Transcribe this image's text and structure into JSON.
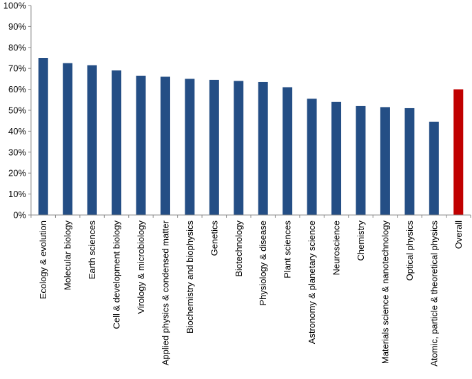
{
  "chart_data": {
    "type": "bar",
    "title": "",
    "xlabel": "",
    "ylabel": "",
    "ylim": [
      0,
      100
    ],
    "yticks": [
      "0%",
      "10%",
      "20%",
      "30%",
      "40%",
      "50%",
      "60%",
      "70%",
      "80%",
      "90%",
      "100%"
    ],
    "grid": "none",
    "legend": "none",
    "categories": [
      "Ecology & evolution",
      "Molecular biology",
      "Earth sciences",
      "Cell & development biology",
      "Virology & microbiology",
      "Applied physics & condensed matter",
      "Biochemistry and biophysics",
      "Genetics",
      "Biotechnology",
      "Physiology & disease",
      "Plant sciences",
      "Astronomy & planetary science",
      "Neuroscience",
      "Chemistry",
      "Materials science & nanotechnology",
      "Optical physics",
      "Atomic, particle & theoretical physics",
      "Overall"
    ],
    "values": [
      75,
      72.5,
      71.5,
      69,
      66.5,
      66,
      65,
      64.5,
      64,
      63.5,
      61,
      55.5,
      54,
      52,
      51.5,
      51,
      44.5,
      60
    ],
    "colors": {
      "bar": "#244e85",
      "highlight": "#c00000",
      "axis": "#888888"
    },
    "highlight_category": "Overall"
  }
}
